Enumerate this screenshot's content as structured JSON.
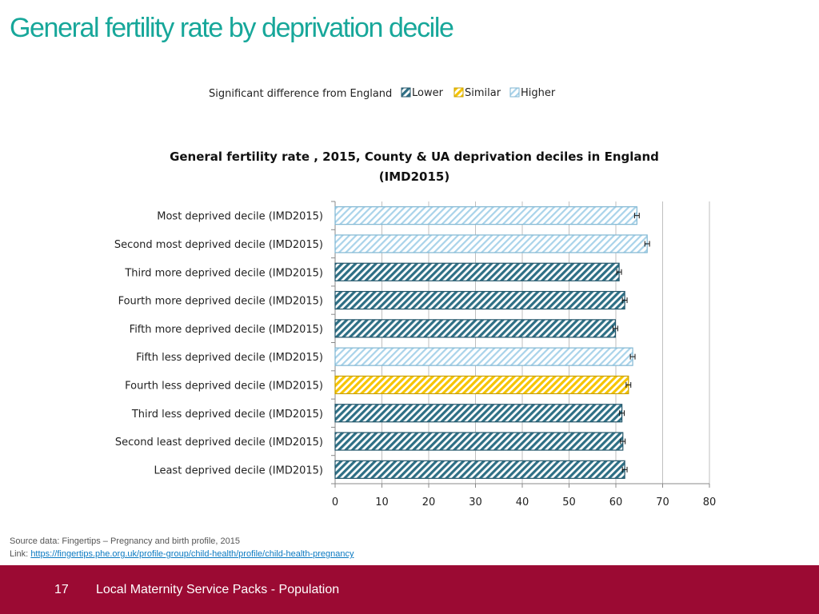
{
  "page": {
    "title": "General fertility rate by deprivation decile",
    "source_text": "Source data: Fingertips – Pregnancy and birth profile, 2015",
    "link_label": "Link:",
    "link_url": "https://fingertips.phe.org.uk/profile-group/child-health/profile/child-health-pregnancy",
    "page_number": "17",
    "footer_title": "Local Maternity Service Packs - Population"
  },
  "chart_data": {
    "type": "bar",
    "orientation": "horizontal",
    "title": "General fertility rate , 2015, County & UA deprivation deciles in England",
    "title_line1": "General fertility rate , 2015, County & UA deprivation deciles in England",
    "title_line2": "(IMD2015)",
    "legend": {
      "title": "Significant difference from England",
      "items": [
        {
          "key": "lower",
          "label": "Lower"
        },
        {
          "key": "similar",
          "label": "Similar"
        },
        {
          "key": "higher",
          "label": "Higher"
        }
      ],
      "placement": "top"
    },
    "colors": {
      "lower": "#2e6f85",
      "similar": "#f5c400",
      "higher": "#a9d3ea"
    },
    "categories": [
      "Most deprived decile (IMD2015)",
      "Second most deprived decile (IMD2015)",
      "Third more deprived decile (IMD2015)",
      "Fourth more deprived decile (IMD2015)",
      "Fifth more deprived decile (IMD2015)",
      "Fifth less deprived decile (IMD2015)",
      "Fourth less deprived decile (IMD2015)",
      "Third less deprived decile (IMD2015)",
      "Second least deprived decile (IMD2015)",
      "Least deprived decile (IMD2015)"
    ],
    "values": [
      64.5,
      66.7,
      60.7,
      61.9,
      59.9,
      63.6,
      62.7,
      61.3,
      61.5,
      61.9
    ],
    "ci_lower": [
      64.0,
      66.2,
      60.2,
      61.4,
      59.4,
      63.1,
      62.2,
      60.8,
      61.0,
      61.4
    ],
    "ci_upper": [
      65.0,
      67.2,
      61.2,
      62.4,
      60.4,
      64.1,
      63.2,
      61.8,
      62.0,
      62.4
    ],
    "significance": [
      "higher",
      "higher",
      "lower",
      "lower",
      "lower",
      "higher",
      "similar",
      "lower",
      "lower",
      "lower"
    ],
    "xlim": [
      0,
      80
    ],
    "xticks": [
      "0",
      "10",
      "20",
      "30",
      "40",
      "50",
      "60",
      "70",
      "80"
    ],
    "xlabel": "",
    "ylabel": "",
    "grid": true
  }
}
